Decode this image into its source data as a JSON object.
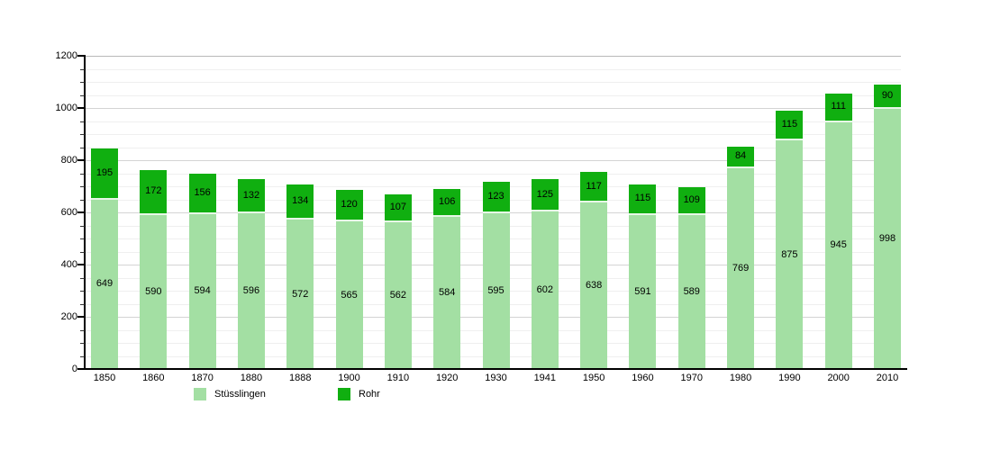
{
  "chart_data": {
    "type": "bar",
    "stacked": true,
    "title": "",
    "xlabel": "",
    "ylabel": "",
    "categories": [
      "1850",
      "1860",
      "1870",
      "1880",
      "1888",
      "1900",
      "1910",
      "1920",
      "1930",
      "1941",
      "1950",
      "1960",
      "1970",
      "1980",
      "1990",
      "2000",
      "2010"
    ],
    "series": [
      {
        "name": "Stüsslingen",
        "color": "#A3DFA3",
        "values": [
          649,
          590,
          594,
          596,
          572,
          565,
          562,
          584,
          595,
          602,
          638,
          591,
          589,
          769,
          875,
          945,
          998
        ]
      },
      {
        "name": "Rohr",
        "color": "#10AF10",
        "values": [
          195,
          172,
          156,
          132,
          134,
          120,
          107,
          106,
          123,
          125,
          117,
          115,
          109,
          84,
          115,
          111,
          90
        ]
      }
    ],
    "ylim": [
      0,
      1200
    ],
    "y_major_step": 200,
    "y_minor_step": 50,
    "y_tick_labels": [
      "0",
      "200",
      "400",
      "600",
      "800",
      "1000",
      "1200"
    ],
    "grid": true,
    "legend_position": "bottom",
    "bar_value_labels": true
  },
  "colors": {
    "background": "#ffffff",
    "axis": "#000000",
    "major_grid": "#d4d4d4",
    "minor_grid": "#efefef",
    "value_text": "#000000",
    "segment_divider": "#ffffff"
  },
  "legend": {
    "items": [
      {
        "label": "Stüsslingen",
        "color": "#A3DFA3"
      },
      {
        "label": "Rohr",
        "color": "#10AF10"
      }
    ]
  }
}
